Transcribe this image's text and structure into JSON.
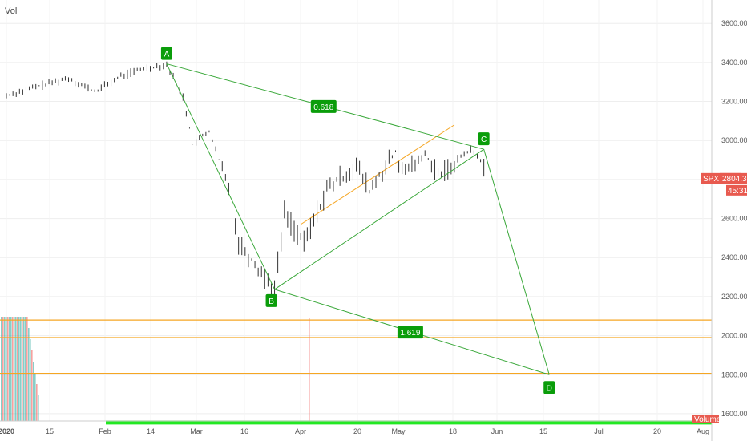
{
  "header": {
    "vol_label": "Vol"
  },
  "chart_data": {
    "type": "line",
    "symbol": "SPX",
    "last_price": "2804.31",
    "countdown": "45:31",
    "volume_label": "Volume",
    "y_ticks": [
      1600,
      1800,
      2000,
      2200,
      2400,
      2600,
      2800,
      3000,
      3200,
      3400,
      3600
    ],
    "y_tick_labels": [
      "1600.00",
      "1800.00",
      "2000.00",
      "2200.00",
      "2400.00",
      "2600.00",
      "2800.00",
      "3000.00",
      "3200.00",
      "3400.00",
      "3600.00"
    ],
    "ylim": [
      1460,
      3720
    ],
    "x_ticks": [
      "2020",
      "15",
      "Feb",
      "14",
      "Mar",
      "16",
      "Apr",
      "20",
      "May",
      "18",
      "Jun",
      "15",
      "Jul",
      "20",
      "Aug"
    ],
    "price_series": [
      {
        "x": "Jan 1",
        "y": 3230
      },
      {
        "x": "Jan 10",
        "y": 3275
      },
      {
        "x": "Jan 20",
        "y": 3320
      },
      {
        "x": "Jan 28",
        "y": 3250
      },
      {
        "x": "Feb 5",
        "y": 3330
      },
      {
        "x": "Feb 12",
        "y": 3370
      },
      {
        "x": "Feb 19",
        "y": 3390
      },
      {
        "x": "Feb 24",
        "y": 3225
      },
      {
        "x": "Feb 27",
        "y": 2980
      },
      {
        "x": "Mar 3",
        "y": 3050
      },
      {
        "x": "Mar 9",
        "y": 2750
      },
      {
        "x": "Mar 12",
        "y": 2480
      },
      {
        "x": "Mar 16",
        "y": 2390
      },
      {
        "x": "Mar 23",
        "y": 2237
      },
      {
        "x": "Mar 26",
        "y": 2630
      },
      {
        "x": "Apr 1",
        "y": 2470
      },
      {
        "x": "Apr 8",
        "y": 2750
      },
      {
        "x": "Apr 17",
        "y": 2870
      },
      {
        "x": "Apr 21",
        "y": 2740
      },
      {
        "x": "Apr 29",
        "y": 2940
      },
      {
        "x": "May 1",
        "y": 2830
      },
      {
        "x": "May 8",
        "y": 2930
      },
      {
        "x": "May 13",
        "y": 2820
      },
      {
        "x": "May 15",
        "y": 2850
      },
      {
        "x": "May 19",
        "y": 2920
      },
      {
        "x": "May 22",
        "y": 2955
      },
      {
        "x": "May 26",
        "y": 2880
      },
      {
        "x": "May 27",
        "y": 2804
      }
    ],
    "pattern_points": [
      {
        "label": "A",
        "x": "Feb 19",
        "y": 3393
      },
      {
        "label": "B",
        "x": "Mar 23",
        "y": 2237
      },
      {
        "label": "C",
        "x": "May 26",
        "y": 2955
      },
      {
        "label": "D",
        "x": "Jun 15",
        "y": 1800
      }
    ],
    "ratios": [
      "0.618",
      "1.619"
    ],
    "horizontal_levels": [
      {
        "y": 2080,
        "color": "#f5a623"
      },
      {
        "y": 1990,
        "color": "#f5a623"
      },
      {
        "y": 1807,
        "color": "#f5a623"
      },
      {
        "y": 1555,
        "color": "#22e822"
      }
    ],
    "trend_line": {
      "from": {
        "x": "Mar 31",
        "y": 2570
      },
      "to": {
        "x": "May 17",
        "y": 3080
      },
      "color": "#f5a623"
    },
    "colors": {
      "pattern": "#3aa83a",
      "up": "#26a69a",
      "down": "#ef5350",
      "price_badge": "#e85a4f"
    }
  }
}
